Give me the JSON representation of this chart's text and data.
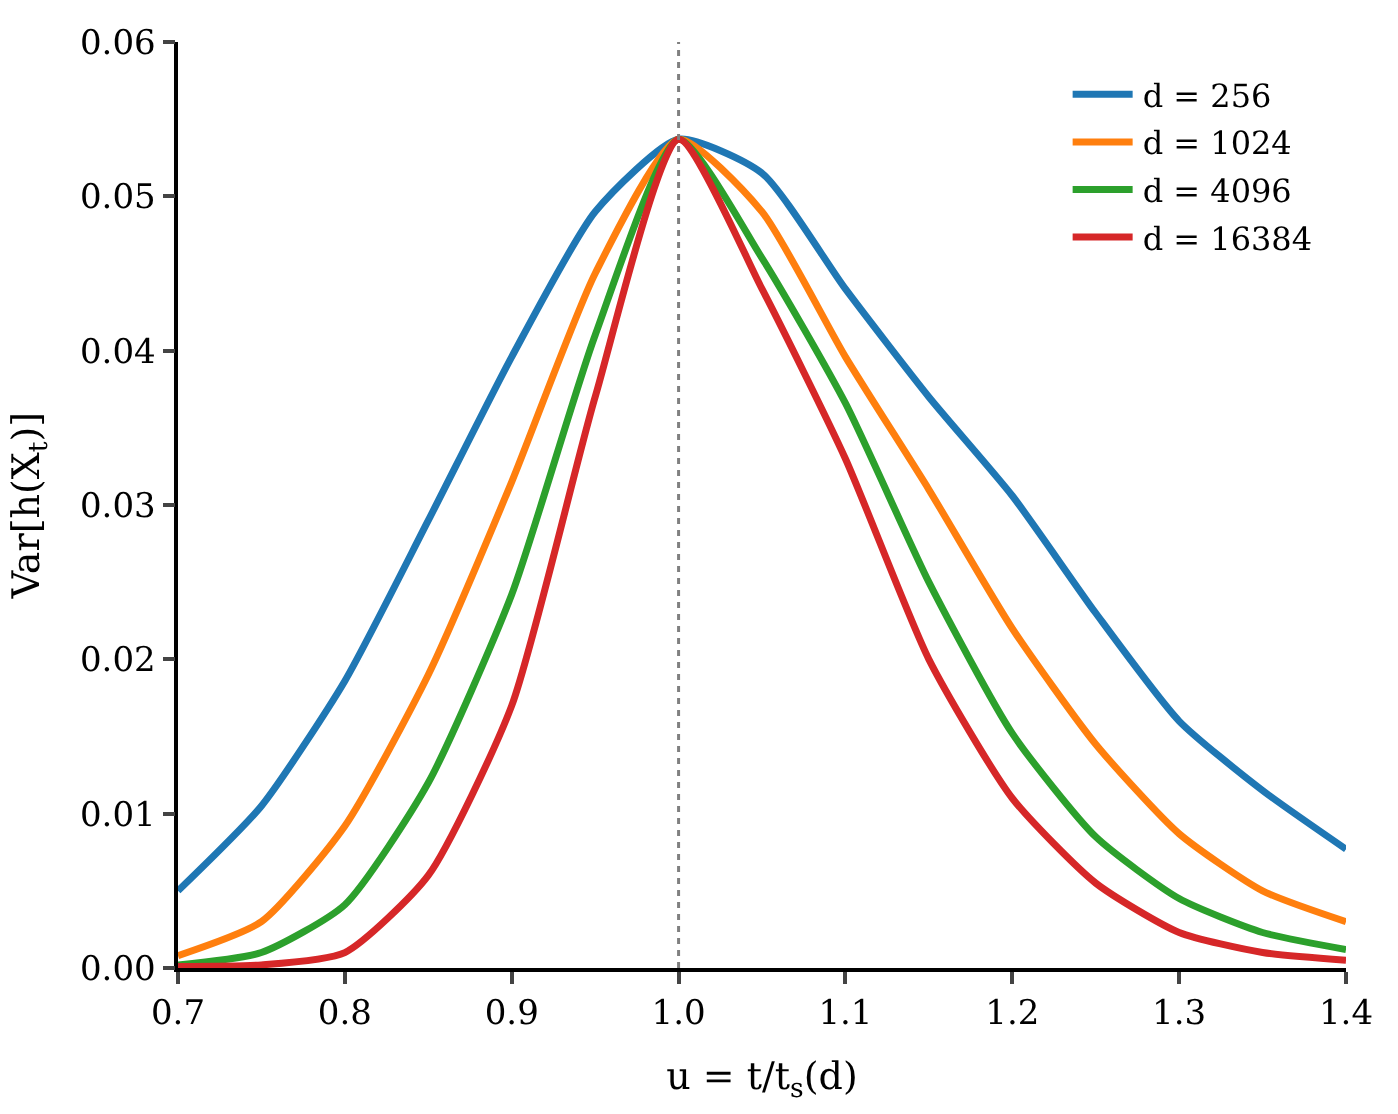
{
  "chart_data": {
    "type": "line",
    "xlabel": "u = t/t$_{s}$(d)",
    "ylabel": "Var[h(X$_{t}$)]",
    "x": [
      0.7,
      0.75,
      0.8,
      0.85,
      0.9,
      0.95,
      1.0,
      1.05,
      1.1,
      1.15,
      1.2,
      1.25,
      1.3,
      1.35,
      1.4
    ],
    "series": [
      {
        "name": "d = 256",
        "color": "#1f77b4",
        "values": [
          0.005,
          0.0105,
          0.0186,
          0.029,
          0.0396,
          0.049,
          0.0537,
          0.0515,
          0.044,
          0.037,
          0.0306,
          0.023,
          0.016,
          0.0115,
          0.0077
        ]
      },
      {
        "name": "d = 1024",
        "color": "#ff7f0e",
        "values": [
          0.0008,
          0.003,
          0.0092,
          0.019,
          0.0315,
          0.045,
          0.0537,
          0.049,
          0.0396,
          0.031,
          0.022,
          0.0145,
          0.0087,
          0.005,
          0.003
        ]
      },
      {
        "name": "d = 4096",
        "color": "#2ca02c",
        "values": [
          0.0002,
          0.001,
          0.0041,
          0.012,
          0.0242,
          0.041,
          0.0537,
          0.046,
          0.0366,
          0.025,
          0.0152,
          0.0085,
          0.0045,
          0.0023,
          0.0012
        ]
      },
      {
        "name": "d = 16384",
        "color": "#d62728",
        "values": [
          0.0001,
          0.0002,
          0.001,
          0.006,
          0.017,
          0.037,
          0.0537,
          0.044,
          0.033,
          0.02,
          0.011,
          0.0055,
          0.0023,
          0.001,
          0.0005
        ]
      }
    ],
    "xlim": [
      0.7,
      1.4
    ],
    "xticks": [
      0.7,
      0.8,
      0.9,
      {
        "value": 1.0,
        "label": "1.0"
      },
      1.1,
      1.2,
      1.3,
      1.4
    ],
    "ylim": [
      0,
      0.06
    ],
    "yticks": [
      {
        "value": 0,
        "label": "0.00"
      },
      0.01,
      0.02,
      0.03,
      0.04,
      0.05,
      0.06
    ],
    "ref_lines": [
      {
        "axis": "x",
        "value": 1.0,
        "color": "#808080",
        "line_style": "dotted"
      }
    ],
    "legend": "top right",
    "marker": "none",
    "line_style": "solid"
  }
}
